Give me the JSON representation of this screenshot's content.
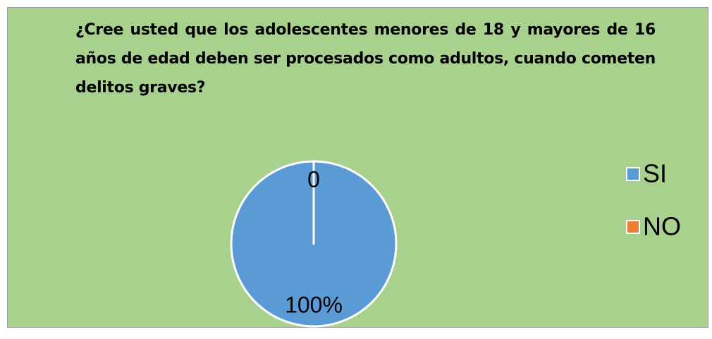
{
  "chart_data": {
    "type": "pie",
    "title": "¿Cree usted que los adolescentes menores de 18 y mayores de 16 años de edad deben ser procesados como adultos, cuando cometen delitos graves?",
    "categories": [
      "SI",
      "NO"
    ],
    "values": [
      100,
      0
    ],
    "value_labels": [
      "100%",
      "0"
    ],
    "colors": [
      "#5b9bd5",
      "#ed7d31"
    ],
    "legend": "right"
  }
}
